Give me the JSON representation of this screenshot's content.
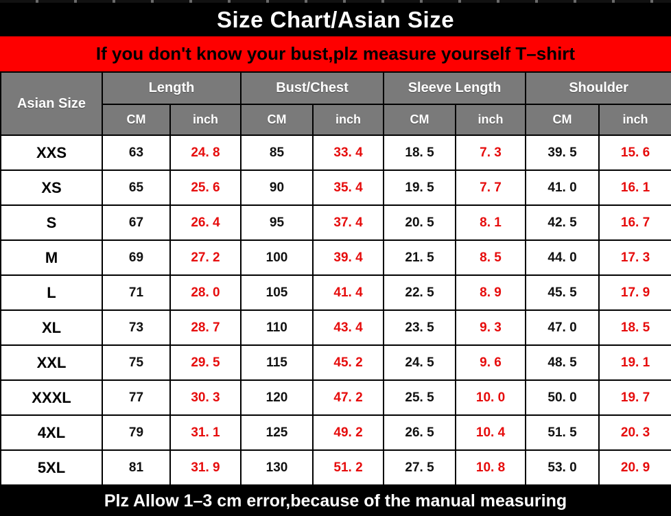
{
  "title_bar": {
    "text": "Size Chart/Asian Size"
  },
  "banner": {
    "text": "If you don't know your bust,plz measure yourself T–shirt"
  },
  "footer": {
    "text": "Plz Allow 1–3 cm error,because of the manual measuring"
  },
  "table": {
    "corner_header": "Asian Size",
    "groups": [
      {
        "label": "Length"
      },
      {
        "label": "Bust/Chest"
      },
      {
        "label": "Sleeve Length"
      },
      {
        "label": "Shoulder"
      }
    ],
    "unit_cm": "CM",
    "unit_inch": "inch",
    "rows": [
      {
        "size": "XXS",
        "cells": [
          "63",
          "24. 8",
          "85",
          "33. 4",
          "18. 5",
          "7. 3",
          "39. 5",
          "15. 6"
        ]
      },
      {
        "size": "XS",
        "cells": [
          "65",
          "25. 6",
          "90",
          "35. 4",
          "19. 5",
          "7. 7",
          "41. 0",
          "16. 1"
        ]
      },
      {
        "size": "S",
        "cells": [
          "67",
          "26. 4",
          "95",
          "37. 4",
          "20. 5",
          "8. 1",
          "42. 5",
          "16. 7"
        ]
      },
      {
        "size": "M",
        "cells": [
          "69",
          "27. 2",
          "100",
          "39. 4",
          "21. 5",
          "8. 5",
          "44. 0",
          "17. 3"
        ]
      },
      {
        "size": "L",
        "cells": [
          "71",
          "28. 0",
          "105",
          "41. 4",
          "22. 5",
          "8. 9",
          "45. 5",
          "17. 9"
        ]
      },
      {
        "size": "XL",
        "cells": [
          "73",
          "28. 7",
          "110",
          "43. 4",
          "23. 5",
          "9. 3",
          "47. 0",
          "18. 5"
        ]
      },
      {
        "size": "XXL",
        "cells": [
          "75",
          "29. 5",
          "115",
          "45. 2",
          "24. 5",
          "9. 6",
          "48. 5",
          "19. 1"
        ]
      },
      {
        "size": "XXXL",
        "cells": [
          "77",
          "30. 3",
          "120",
          "47. 2",
          "25. 5",
          "10. 0",
          "50. 0",
          "19. 7"
        ]
      },
      {
        "size": "4XL",
        "cells": [
          "79",
          "31. 1",
          "125",
          "49. 2",
          "26. 5",
          "10. 4",
          "51. 5",
          "20. 3"
        ]
      },
      {
        "size": "5XL",
        "cells": [
          "81",
          "31. 9",
          "130",
          "51. 2",
          "27. 5",
          "10. 8",
          "53. 0",
          "20. 9"
        ]
      }
    ]
  },
  "colors": {
    "banner_red": "#fe0000",
    "inch_red": "#e60c0c",
    "header_gray": "#7a7a7a",
    "bar_black": "#000000",
    "header_text": "#ffffff"
  },
  "chart_data": {
    "type": "table",
    "title": "Size Chart/Asian Size",
    "columns": [
      "Asian Size",
      "Length CM",
      "Length inch",
      "Bust/Chest CM",
      "Bust/Chest inch",
      "Sleeve Length CM",
      "Sleeve Length inch",
      "Shoulder CM",
      "Shoulder inch"
    ],
    "rows": [
      [
        "XXS",
        63,
        24.8,
        85,
        33.4,
        18.5,
        7.3,
        39.5,
        15.6
      ],
      [
        "XS",
        65,
        25.6,
        90,
        35.4,
        19.5,
        7.7,
        41.0,
        16.1
      ],
      [
        "S",
        67,
        26.4,
        95,
        37.4,
        20.5,
        8.1,
        42.5,
        16.7
      ],
      [
        "M",
        69,
        27.2,
        100,
        39.4,
        21.5,
        8.5,
        44.0,
        17.3
      ],
      [
        "L",
        71,
        28.0,
        105,
        41.4,
        22.5,
        8.9,
        45.5,
        17.9
      ],
      [
        "XL",
        73,
        28.7,
        110,
        43.4,
        23.5,
        9.3,
        47.0,
        18.5
      ],
      [
        "XXL",
        75,
        29.5,
        115,
        45.2,
        24.5,
        9.6,
        48.5,
        19.1
      ],
      [
        "XXXL",
        77,
        30.3,
        120,
        47.2,
        25.5,
        10.0,
        50.0,
        19.7
      ],
      [
        "4XL",
        79,
        31.1,
        125,
        49.2,
        26.5,
        10.4,
        51.5,
        20.3
      ],
      [
        "5XL",
        81,
        31.9,
        130,
        51.2,
        27.5,
        10.8,
        53.0,
        20.9
      ]
    ]
  }
}
